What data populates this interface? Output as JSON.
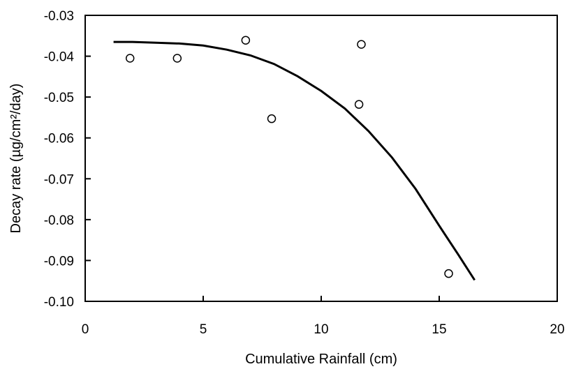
{
  "chart_data": {
    "type": "scatter",
    "title": "",
    "xlabel": "Cumulative Rainfall (cm)",
    "ylabel": "Decay rate (µg/cm²/day)",
    "xlim": [
      0,
      20
    ],
    "ylim": [
      -0.1,
      -0.03
    ],
    "x_ticks": [
      0,
      5,
      10,
      15,
      20
    ],
    "x_tick_labels": [
      "0",
      "5",
      "10",
      "15",
      "20"
    ],
    "y_ticks": [
      -0.03,
      -0.04,
      -0.05,
      -0.06,
      -0.07,
      -0.08,
      -0.09,
      -0.1
    ],
    "y_tick_labels": [
      "-0.03",
      "-0.04",
      "-0.05",
      "-0.06",
      "-0.07",
      "-0.08",
      "-0.09",
      "-0.10"
    ],
    "y_axis_reversed": true,
    "grid": false,
    "legend": "none",
    "series": [
      {
        "type": "scatter",
        "marker": "open-circle",
        "points": [
          {
            "x": 1.9,
            "y": -0.0405
          },
          {
            "x": 3.9,
            "y": -0.0405
          },
          {
            "x": 6.8,
            "y": -0.0361
          },
          {
            "x": 7.9,
            "y": -0.0553
          },
          {
            "x": 11.6,
            "y": -0.0518
          },
          {
            "x": 11.7,
            "y": -0.0371
          },
          {
            "x": 15.4,
            "y": -0.0932
          }
        ]
      },
      {
        "type": "line",
        "style": "fit-curve",
        "points": [
          {
            "x": 1.2,
            "y": -0.0365
          },
          {
            "x": 2.0,
            "y": -0.0365
          },
          {
            "x": 3.0,
            "y": -0.0367
          },
          {
            "x": 4.0,
            "y": -0.0369
          },
          {
            "x": 5.0,
            "y": -0.0374
          },
          {
            "x": 6.0,
            "y": -0.0384
          },
          {
            "x": 7.0,
            "y": -0.0398
          },
          {
            "x": 8.0,
            "y": -0.0419
          },
          {
            "x": 9.0,
            "y": -0.0449
          },
          {
            "x": 10.0,
            "y": -0.0485
          },
          {
            "x": 11.0,
            "y": -0.0528
          },
          {
            "x": 12.0,
            "y": -0.0583
          },
          {
            "x": 13.0,
            "y": -0.0648
          },
          {
            "x": 14.0,
            "y": -0.0725
          },
          {
            "x": 15.0,
            "y": -0.0815
          },
          {
            "x": 15.8,
            "y": -0.0885
          },
          {
            "x": 16.5,
            "y": -0.0948
          }
        ]
      }
    ],
    "colors": {
      "line": "#000000",
      "marker_stroke": "#000000",
      "marker_fill": "#ffffff",
      "frame": "#000000"
    }
  }
}
